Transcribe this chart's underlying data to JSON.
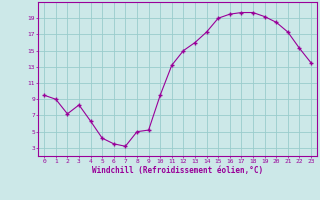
{
  "x": [
    0,
    1,
    2,
    3,
    4,
    5,
    6,
    7,
    8,
    9,
    10,
    11,
    12,
    13,
    14,
    15,
    16,
    17,
    18,
    19,
    20,
    21,
    22,
    23
  ],
  "y": [
    9.5,
    9.0,
    7.2,
    8.3,
    6.3,
    4.2,
    3.5,
    3.2,
    5.0,
    5.2,
    9.5,
    13.2,
    15.0,
    16.0,
    17.3,
    19.0,
    19.5,
    19.7,
    19.7,
    19.2,
    18.5,
    17.3,
    15.3,
    13.5
  ],
  "xlim": [
    -0.5,
    23.5
  ],
  "ylim": [
    2,
    21
  ],
  "yticks": [
    3,
    5,
    7,
    9,
    11,
    13,
    15,
    17,
    19
  ],
  "xticks": [
    0,
    1,
    2,
    3,
    4,
    5,
    6,
    7,
    8,
    9,
    10,
    11,
    12,
    13,
    14,
    15,
    16,
    17,
    18,
    19,
    20,
    21,
    22,
    23
  ],
  "xlabel": "Windchill (Refroidissement éolien,°C)",
  "line_color": "#990099",
  "marker": "+",
  "bg_color": "#cce8e8",
  "grid_color": "#99cccc",
  "axis_color": "#990099",
  "tick_color": "#990099",
  "figsize": [
    3.2,
    2.0
  ],
  "dpi": 100
}
